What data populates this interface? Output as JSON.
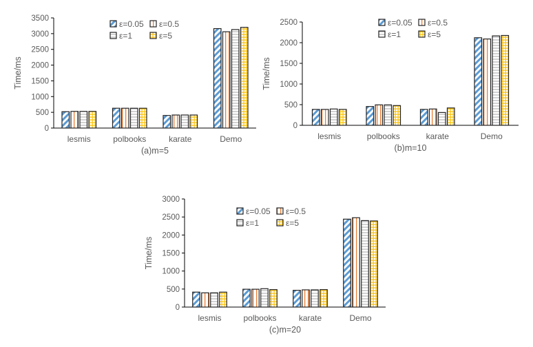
{
  "colors": {
    "eps005": "#5b9bd5",
    "eps05": "#ed7d31",
    "eps1": "#a5a5a5",
    "eps5": "#ffc000"
  },
  "chart_data": [
    {
      "type": "bar",
      "title": "(a)m=5",
      "ylabel": "Time/ms",
      "ylim": [
        0,
        3500
      ],
      "yticks": [
        "0",
        "500",
        "1000",
        "1500",
        "2000",
        "2500",
        "3000",
        "3500"
      ],
      "categories": [
        "lesmis",
        "polbooks",
        "karate",
        "Demo"
      ],
      "legend": "top-center",
      "grid": false,
      "series": [
        {
          "name": "ε=0.05",
          "values": [
            520,
            630,
            400,
            3160
          ]
        },
        {
          "name": "ε=0.5",
          "values": [
            530,
            630,
            415,
            3060
          ]
        },
        {
          "name": "ε=1",
          "values": [
            530,
            630,
            415,
            3130
          ]
        },
        {
          "name": "ε=5",
          "values": [
            530,
            630,
            415,
            3200
          ]
        }
      ]
    },
    {
      "type": "bar",
      "title": "(b)m=10",
      "ylabel": "Time/ms",
      "ylim": [
        0,
        2500
      ],
      "yticks": [
        "0",
        "500",
        "1000",
        "1500",
        "2000",
        "2500"
      ],
      "categories": [
        "lesmis",
        "polbooks",
        "karate",
        "Demo"
      ],
      "legend": "top-center",
      "grid": false,
      "series": [
        {
          "name": "ε=0.05",
          "values": [
            385,
            455,
            385,
            2120
          ]
        },
        {
          "name": "ε=0.5",
          "values": [
            385,
            495,
            395,
            2090
          ]
        },
        {
          "name": "ε=1",
          "values": [
            395,
            495,
            310,
            2165
          ]
        },
        {
          "name": "ε=5",
          "values": [
            385,
            478,
            420,
            2175
          ]
        }
      ]
    },
    {
      "type": "bar",
      "title": "(c)m=20",
      "ylabel": "Time/ms",
      "ylim": [
        0,
        3000
      ],
      "yticks": [
        "0",
        "500",
        "1000",
        "1500",
        "2000",
        "2500",
        "3000"
      ],
      "categories": [
        "lesmis",
        "polbooks",
        "karate",
        "Demo"
      ],
      "legend": "top-center",
      "grid": false,
      "series": [
        {
          "name": "ε=0.05",
          "values": [
            415,
            495,
            465,
            2440
          ]
        },
        {
          "name": "ε=0.5",
          "values": [
            395,
            495,
            478,
            2480
          ]
        },
        {
          "name": "ε=1",
          "values": [
            395,
            510,
            478,
            2400
          ]
        },
        {
          "name": "ε=5",
          "values": [
            415,
            485,
            485,
            2390
          ]
        }
      ]
    }
  ]
}
